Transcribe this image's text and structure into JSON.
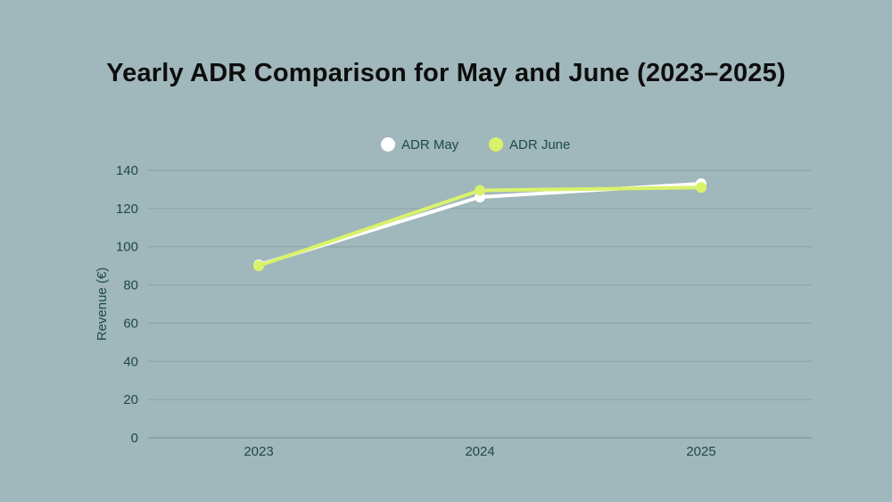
{
  "chart_data": {
    "type": "line",
    "title": "Yearly ADR Comparison for May and June (2023–2025)",
    "xlabel": "",
    "ylabel": "Revenue (€)",
    "categories": [
      "2023",
      "2024",
      "2025"
    ],
    "yticks": [
      "0",
      "20",
      "40",
      "60",
      "80",
      "100",
      "120",
      "140"
    ],
    "ylim": [
      0,
      140
    ],
    "grid": true,
    "legend_position": "top-center",
    "series": [
      {
        "name": "ADR May",
        "values": [
          90.5,
          126,
          133
        ],
        "color": "#ffffff"
      },
      {
        "name": "ADR June",
        "values": [
          90,
          129.5,
          131
        ],
        "color": "#d9f26b"
      }
    ],
    "colors": {
      "background": "#a0b7bb",
      "grid": "#8aa3a6",
      "text": "#1f4a44"
    }
  }
}
